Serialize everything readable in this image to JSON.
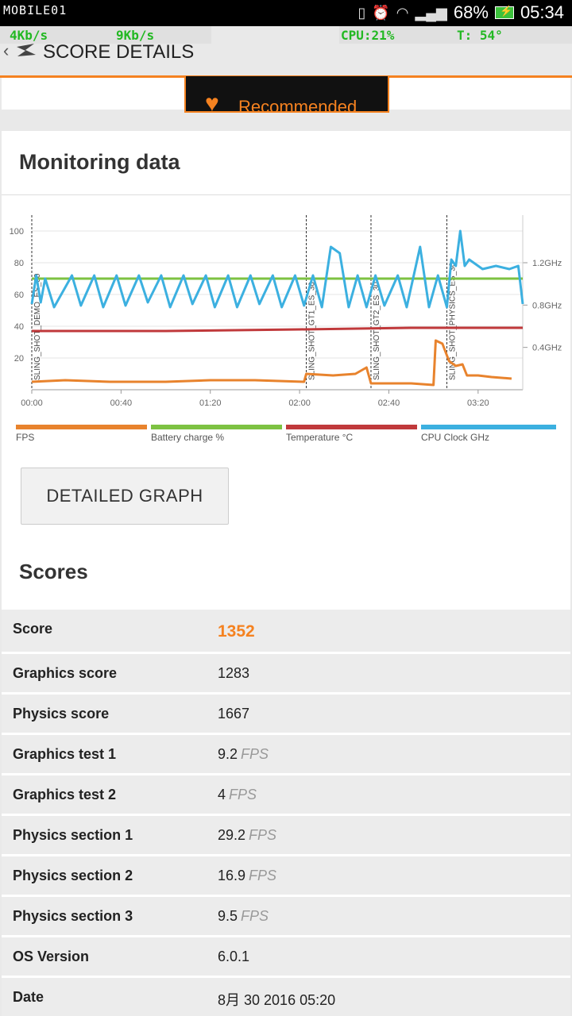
{
  "status_bar": {
    "brand": "MOBILE01",
    "battery_percent": "68%",
    "time": "05:34"
  },
  "overlay": {
    "net_down": "4Kb/s",
    "net_up": "9Kb/s",
    "cpu": "CPU:21%",
    "temp": "T: 54°"
  },
  "app_bar": {
    "title": "SCORE DETAILS"
  },
  "recommended": {
    "label": "Recommended"
  },
  "monitoring": {
    "title": "Monitoring data",
    "button_label": "DETAILED GRAPH"
  },
  "chart_data": {
    "type": "line",
    "x_ticks": [
      "00:00",
      "00:40",
      "01:20",
      "02:00",
      "02:40",
      "03:20"
    ],
    "x_range_seconds": [
      0,
      220
    ],
    "y_left_ticks": [
      20,
      40,
      60,
      80,
      100
    ],
    "y_left_range": [
      0,
      110
    ],
    "y_right_ticks": [
      "0.4GHz",
      "0.8GHz",
      "1.2GHz"
    ],
    "y_right_range_ghz": [
      0,
      1.65
    ],
    "sections": [
      {
        "label": "SLING_SHOT_DEMO_ES_30",
        "t": 0
      },
      {
        "label": "SLING_SHOT_GT1_ES_30",
        "t": 123
      },
      {
        "label": "SLING_SHOT_GT2_ES_30",
        "t": 152
      },
      {
        "label": "SLING_SHOT_PHYSICS_ES_30",
        "t": 186
      }
    ],
    "series": [
      {
        "name": "FPS",
        "color": "#e8832d",
        "points": [
          [
            0,
            5
          ],
          [
            15,
            6
          ],
          [
            35,
            5
          ],
          [
            60,
            5
          ],
          [
            80,
            6
          ],
          [
            100,
            6
          ],
          [
            122,
            5
          ],
          [
            123,
            10
          ],
          [
            135,
            9
          ],
          [
            145,
            10
          ],
          [
            150,
            14
          ],
          [
            152,
            4
          ],
          [
            160,
            4
          ],
          [
            170,
            4
          ],
          [
            180,
            3
          ],
          [
            181,
            31
          ],
          [
            184,
            29
          ],
          [
            187,
            18
          ],
          [
            190,
            15
          ],
          [
            193,
            16
          ],
          [
            195,
            9
          ],
          [
            200,
            9
          ],
          [
            206,
            8
          ],
          [
            215,
            7
          ]
        ]
      },
      {
        "name": "Battery charge %",
        "color": "#7dc242",
        "points": [
          [
            0,
            70
          ],
          [
            220,
            70
          ]
        ]
      },
      {
        "name": "Temperature °C",
        "color": "#c0393b",
        "points": [
          [
            0,
            37
          ],
          [
            60,
            37
          ],
          [
            120,
            38
          ],
          [
            170,
            39
          ],
          [
            220,
            39
          ]
        ]
      },
      {
        "name": "CPU Clock GHz",
        "color": "#3cb0e0",
        "points": [
          [
            0,
            54
          ],
          [
            2,
            72
          ],
          [
            4,
            55
          ],
          [
            6,
            70
          ],
          [
            10,
            52
          ],
          [
            18,
            72
          ],
          [
            22,
            53
          ],
          [
            28,
            72
          ],
          [
            32,
            52
          ],
          [
            38,
            72
          ],
          [
            42,
            53
          ],
          [
            48,
            72
          ],
          [
            52,
            55
          ],
          [
            58,
            72
          ],
          [
            62,
            52
          ],
          [
            68,
            72
          ],
          [
            72,
            54
          ],
          [
            78,
            72
          ],
          [
            82,
            52
          ],
          [
            88,
            72
          ],
          [
            92,
            52
          ],
          [
            98,
            72
          ],
          [
            102,
            54
          ],
          [
            108,
            72
          ],
          [
            112,
            52
          ],
          [
            118,
            72
          ],
          [
            122,
            53
          ],
          [
            126,
            72
          ],
          [
            130,
            52
          ],
          [
            134,
            90
          ],
          [
            138,
            86
          ],
          [
            142,
            52
          ],
          [
            146,
            72
          ],
          [
            150,
            52
          ],
          [
            154,
            72
          ],
          [
            158,
            53
          ],
          [
            164,
            72
          ],
          [
            168,
            52
          ],
          [
            174,
            90
          ],
          [
            178,
            52
          ],
          [
            182,
            72
          ],
          [
            186,
            52
          ],
          [
            188,
            82
          ],
          [
            190,
            78
          ],
          [
            192,
            100
          ],
          [
            194,
            78
          ],
          [
            196,
            82
          ],
          [
            202,
            76
          ],
          [
            208,
            78
          ],
          [
            214,
            76
          ],
          [
            218,
            78
          ],
          [
            220,
            54
          ]
        ]
      }
    ],
    "legend_placement": "bottom"
  },
  "scores": {
    "title": "Scores",
    "rows": [
      {
        "label": "Score",
        "value": "1352",
        "unit": ""
      },
      {
        "label": "Graphics score",
        "value": "1283",
        "unit": ""
      },
      {
        "label": "Physics score",
        "value": "1667",
        "unit": ""
      },
      {
        "label": "Graphics test 1",
        "value": "9.2",
        "unit": "FPS"
      },
      {
        "label": "Graphics test 2",
        "value": "4",
        "unit": "FPS"
      },
      {
        "label": "Physics section 1",
        "value": "29.2",
        "unit": "FPS"
      },
      {
        "label": "Physics section 2",
        "value": "16.9",
        "unit": "FPS"
      },
      {
        "label": "Physics section 3",
        "value": "9.5",
        "unit": "FPS"
      },
      {
        "label": "OS Version",
        "value": "6.0.1",
        "unit": ""
      },
      {
        "label": "Date",
        "value": "8月 30 2016 05:20",
        "unit": ""
      }
    ]
  }
}
